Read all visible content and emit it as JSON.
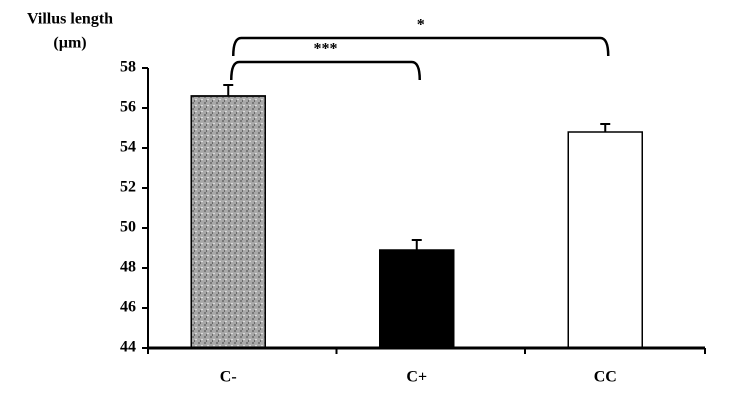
{
  "chart_data": {
    "type": "bar",
    "y_label": [
      "Villus length",
      "(µm)"
    ],
    "categories": [
      "C-",
      "C+",
      "CC"
    ],
    "values": [
      56.6,
      48.9,
      54.8
    ],
    "errors": [
      0.55,
      0.5,
      0.4
    ],
    "colors": [
      "#a8a8a8",
      "#000000",
      "#ffffff"
    ],
    "ylim": [
      44,
      58
    ],
    "yticks": [
      44,
      46,
      48,
      50,
      52,
      54,
      56,
      58
    ],
    "annotations": [
      {
        "text": "***",
        "between": [
          "C-",
          "C+"
        ]
      },
      {
        "text": "*",
        "between": [
          "C-",
          "CC"
        ]
      }
    ]
  }
}
